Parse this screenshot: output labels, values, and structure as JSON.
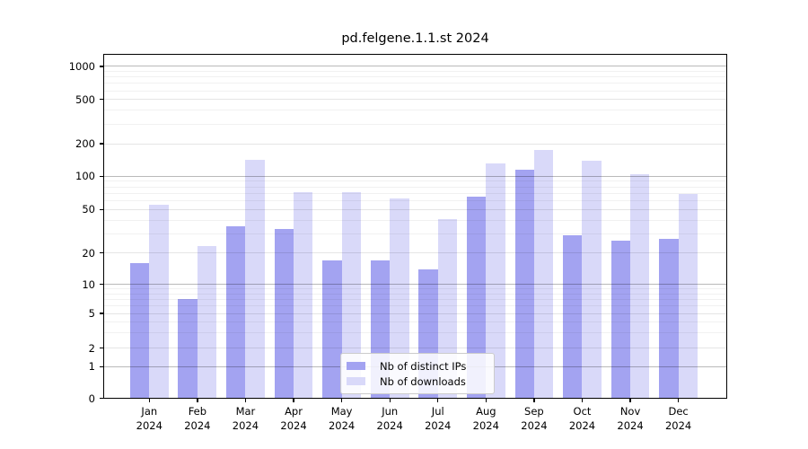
{
  "title": "pd.felgene.1.1.st 2024",
  "chart_data": {
    "type": "bar",
    "title": "pd.felgene.1.1.st 2024",
    "xlabel": "",
    "ylabel": "",
    "yscale": "symlog",
    "ylim": [
      0,
      2000
    ],
    "grid": "on",
    "legend_position": "lower center-right inside plot",
    "categories": [
      "Jan",
      "Feb",
      "Mar",
      "Apr",
      "May",
      "Jun",
      "Jul",
      "Aug",
      "Sep",
      "Oct",
      "Nov",
      "Dec"
    ],
    "year": "2024",
    "yticks": [
      "0",
      "1",
      "2",
      "5",
      "10",
      "20",
      "50",
      "100",
      "200",
      "500",
      "1000"
    ],
    "series": [
      {
        "name": "Nb of distinct IPs",
        "color": "#a3a3f1",
        "values": [
          16,
          7,
          35,
          33,
          17,
          17,
          14,
          66,
          114,
          29,
          26,
          27
        ]
      },
      {
        "name": "Nb of downloads",
        "color": "#d9d9f9",
        "values": [
          55,
          23,
          141,
          72,
          72,
          63,
          41,
          131,
          174,
          139,
          105,
          69
        ]
      }
    ]
  },
  "legend": {
    "items": [
      "Nb of distinct IPs",
      "Nb of downloads"
    ]
  }
}
